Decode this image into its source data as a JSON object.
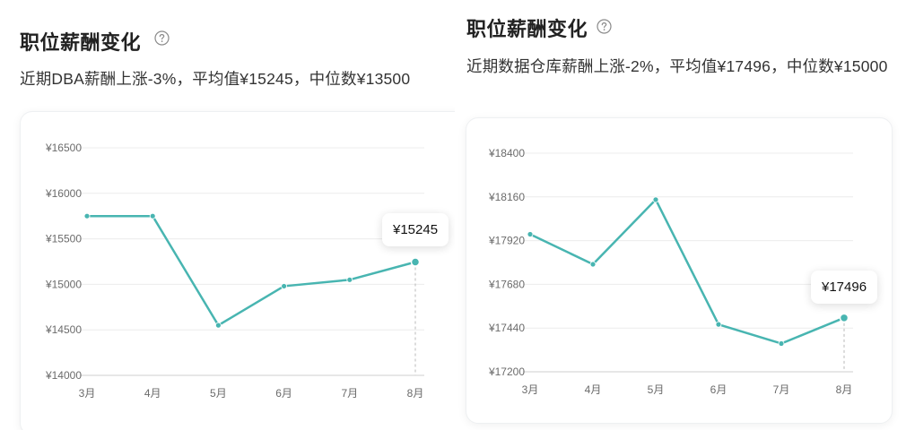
{
  "accent_color": "#48b5b1",
  "panels": [
    {
      "title": "职位薪酬变化",
      "help_icon": "question-circle-icon",
      "subtitle": "近期DBA薪酬上涨-3%，平均值¥15245，中位数¥13500",
      "tooltip": "¥15245"
    },
    {
      "title": "职位薪酬变化",
      "help_icon": "question-circle-icon",
      "subtitle": "近期数据仓库薪酬上涨-2%，平均值¥17496，中位数¥15000",
      "tooltip": "¥17496"
    }
  ],
  "chart_data": [
    {
      "type": "line",
      "categories": [
        "3月",
        "4月",
        "5月",
        "6月",
        "7月",
        "8月"
      ],
      "values": [
        15750,
        15750,
        14550,
        14980,
        15050,
        15245
      ],
      "y_ticks": [
        14000,
        14500,
        15000,
        15500,
        16000,
        16500
      ],
      "y_tick_labels": [
        "¥14000",
        "¥14500",
        "¥15000",
        "¥15500",
        "¥16000",
        "¥16500"
      ],
      "ylim": [
        14000,
        16500
      ],
      "grid": true,
      "highlight_index": 5
    },
    {
      "type": "line",
      "categories": [
        "3月",
        "4月",
        "5月",
        "6月",
        "7月",
        "8月"
      ],
      "values": [
        17955,
        17790,
        18145,
        17460,
        17355,
        17496
      ],
      "y_ticks": [
        17200,
        17440,
        17680,
        17920,
        18160,
        18400
      ],
      "y_tick_labels": [
        "¥17200",
        "¥17440",
        "¥17680",
        "¥17920",
        "¥18160",
        "¥18400"
      ],
      "ylim": [
        17200,
        18400
      ],
      "grid": true,
      "highlight_index": 5
    }
  ]
}
